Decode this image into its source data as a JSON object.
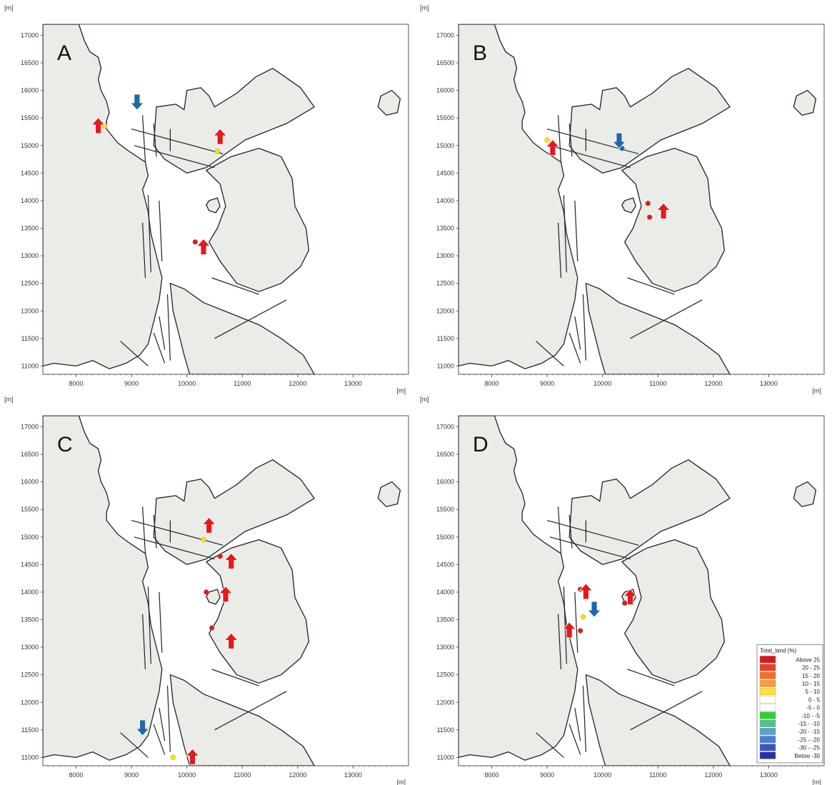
{
  "chart_data": [
    {
      "type": "other",
      "panel_label": "A",
      "x_unit": "[m]",
      "y_unit": "[m]",
      "xlim": [
        7400,
        14000
      ],
      "ylim": [
        10850,
        17200
      ],
      "x_ticks": [
        8000,
        9000,
        10000,
        11000,
        12000,
        13000
      ],
      "y_ticks": [
        11000,
        11500,
        12000,
        12500,
        13000,
        13500,
        14000,
        14500,
        15000,
        15500,
        16000,
        16500,
        17000
      ],
      "arrows": [
        {
          "direction": "up",
          "x": 8400,
          "y": 15350,
          "color": "#e31a1c"
        },
        {
          "direction": "down",
          "x": 9100,
          "y": 15800,
          "color": "#2166ac"
        },
        {
          "direction": "up",
          "x": 10600,
          "y": 15150,
          "color": "#e31a1c"
        },
        {
          "direction": "up",
          "x": 10300,
          "y": 13150,
          "color": "#e31a1c"
        }
      ],
      "markers": [
        {
          "x": 8520,
          "y": 15350,
          "color": "#ffe000"
        },
        {
          "x": 10550,
          "y": 14900,
          "color": "#ffe000"
        },
        {
          "x": 10150,
          "y": 13250,
          "color": "#e31a1c"
        }
      ]
    },
    {
      "type": "other",
      "panel_label": "B",
      "x_unit": "[m]",
      "y_unit": "[m]",
      "xlim": [
        7400,
        14000
      ],
      "ylim": [
        10850,
        17200
      ],
      "x_ticks": [
        8000,
        9000,
        10000,
        11000,
        12000,
        13000
      ],
      "y_ticks": [
        11000,
        11500,
        12000,
        12500,
        13000,
        13500,
        14000,
        14500,
        15000,
        15500,
        16000,
        16500,
        17000
      ],
      "arrows": [
        {
          "direction": "up",
          "x": 9100,
          "y": 14950,
          "color": "#e31a1c"
        },
        {
          "direction": "down",
          "x": 10300,
          "y": 15100,
          "color": "#2166ac"
        },
        {
          "direction": "up",
          "x": 11100,
          "y": 13800,
          "color": "#e31a1c"
        }
      ],
      "markers": [
        {
          "x": 9000,
          "y": 15100,
          "color": "#ffe000"
        },
        {
          "x": 10350,
          "y": 14950,
          "color": "#2166ac"
        },
        {
          "x": 10820,
          "y": 13950,
          "color": "#e31a1c"
        },
        {
          "x": 10850,
          "y": 13700,
          "color": "#e31a1c"
        }
      ]
    },
    {
      "type": "other",
      "panel_label": "C",
      "x_unit": "[m]",
      "y_unit": "[m]",
      "xlim": [
        7400,
        14000
      ],
      "ylim": [
        10850,
        17200
      ],
      "x_ticks": [
        8000,
        9000,
        10000,
        11000,
        12000,
        13000
      ],
      "y_ticks": [
        11000,
        11500,
        12000,
        12500,
        13000,
        13500,
        14000,
        14500,
        15000,
        15500,
        16000,
        16500,
        17000
      ],
      "arrows": [
        {
          "direction": "up",
          "x": 10400,
          "y": 15200,
          "color": "#e31a1c"
        },
        {
          "direction": "up",
          "x": 10800,
          "y": 14550,
          "color": "#e31a1c"
        },
        {
          "direction": "up",
          "x": 10700,
          "y": 13950,
          "color": "#e31a1c"
        },
        {
          "direction": "up",
          "x": 10800,
          "y": 13100,
          "color": "#e31a1c"
        },
        {
          "direction": "down",
          "x": 9200,
          "y": 11550,
          "color": "#2166ac"
        },
        {
          "direction": "up",
          "x": 10100,
          "y": 11000,
          "color": "#e31a1c"
        }
      ],
      "markers": [
        {
          "x": 10300,
          "y": 14950,
          "color": "#ffe000"
        },
        {
          "x": 10600,
          "y": 14650,
          "color": "#e31a1c"
        },
        {
          "x": 10350,
          "y": 14000,
          "color": "#e31a1c"
        },
        {
          "x": 10450,
          "y": 13350,
          "color": "#e31a1c"
        },
        {
          "x": 9750,
          "y": 11000,
          "color": "#ffe000"
        }
      ]
    },
    {
      "type": "other",
      "panel_label": "D",
      "x_unit": "[m]",
      "y_unit": "[m]",
      "xlim": [
        7400,
        14000
      ],
      "ylim": [
        10850,
        17200
      ],
      "x_ticks": [
        8000,
        9000,
        10000,
        11000,
        12000,
        13000
      ],
      "y_ticks": [
        11000,
        11500,
        12000,
        12500,
        13000,
        13500,
        14000,
        14500,
        15000,
        15500,
        16000,
        16500,
        17000
      ],
      "arrows": [
        {
          "direction": "up",
          "x": 9700,
          "y": 14000,
          "color": "#e31a1c"
        },
        {
          "direction": "up",
          "x": 10500,
          "y": 13900,
          "color": "#e31a1c"
        },
        {
          "direction": "down",
          "x": 9850,
          "y": 13700,
          "color": "#2166ac"
        },
        {
          "direction": "up",
          "x": 9400,
          "y": 13300,
          "color": "#e31a1c"
        }
      ],
      "markers": [
        {
          "x": 9600,
          "y": 14050,
          "color": "#e31a1c"
        },
        {
          "x": 9650,
          "y": 13550,
          "color": "#ffe000"
        },
        {
          "x": 9600,
          "y": 13300,
          "color": "#e31a1c"
        },
        {
          "x": 10400,
          "y": 13800,
          "color": "#e31a1c"
        }
      ],
      "legend": {
        "title": "Total_land (%)",
        "position": "bottom-right",
        "items": [
          {
            "label": "Above  25",
            "color": "#d7191c"
          },
          {
            "label": "20 -  25",
            "color": "#e8401f"
          },
          {
            "label": "15 -  20",
            "color": "#f46d2a"
          },
          {
            "label": "10 -  15",
            "color": "#fd9a3a"
          },
          {
            "label": "5 -  10",
            "color": "#ffe135"
          },
          {
            "label": "0 -   5",
            "color": "#ffffff"
          },
          {
            "label": "-5 -   0",
            "color": "#ffffff"
          },
          {
            "label": "-10 -  -5",
            "color": "#33cc33"
          },
          {
            "label": "-15 - -10",
            "color": "#4fc38a"
          },
          {
            "label": "-20 - -15",
            "color": "#5c9fd6"
          },
          {
            "label": "-25 - -20",
            "color": "#4a7fd0"
          },
          {
            "label": "-30 - -25",
            "color": "#3656c4"
          },
          {
            "label": "Below -30",
            "color": "#2c2ea8"
          }
        ]
      }
    }
  ]
}
